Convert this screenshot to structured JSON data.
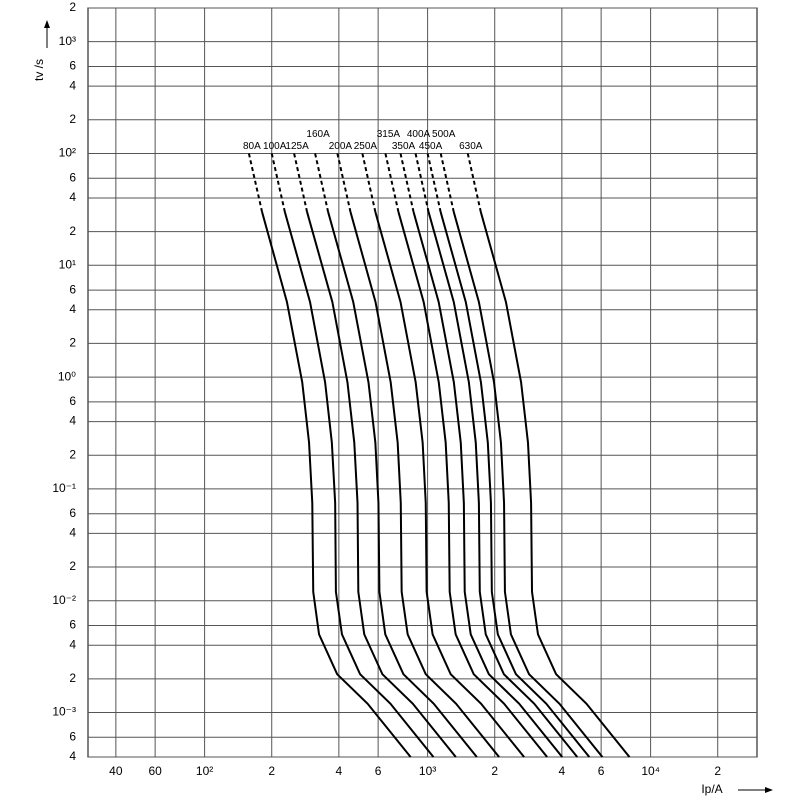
{
  "chart_data": {
    "type": "line",
    "x_label": "Ip/A",
    "y_label": "tv /s",
    "log_x": true,
    "log_y": true,
    "grid": true,
    "dashed_first_segment": true,
    "xlim": [
      30,
      30000
    ],
    "xticks": [
      40,
      60,
      {
        "value": 100,
        "label": "10²"
      },
      {
        "value": 200,
        "label": "2"
      },
      {
        "value": 400,
        "label": "4"
      },
      {
        "value": 600,
        "label": "6"
      },
      {
        "value": 1000,
        "label": "10³"
      },
      {
        "value": 2000,
        "label": "2"
      },
      {
        "value": 4000,
        "label": "4"
      },
      {
        "value": 6000,
        "label": "6"
      },
      {
        "value": 10000,
        "label": "10⁴"
      },
      {
        "value": 20000,
        "label": "2"
      }
    ],
    "ylim": [
      0.0004,
      2000
    ],
    "yticks": [
      {
        "value": 2000,
        "label": "2"
      },
      {
        "value": 1000,
        "label": "10³"
      },
      {
        "value": 600,
        "label": "6"
      },
      {
        "value": 400,
        "label": "4"
      },
      {
        "value": 200,
        "label": "2"
      },
      {
        "value": 100,
        "label": "10²"
      },
      {
        "value": 60,
        "label": "6"
      },
      {
        "value": 40,
        "label": "4"
      },
      {
        "value": 20,
        "label": "2"
      },
      {
        "value": 10,
        "label": "10¹"
      },
      6,
      4,
      2,
      {
        "value": 1,
        "label": "10⁰"
      },
      {
        "value": 0.6,
        "label": "6"
      },
      {
        "value": 0.4,
        "label": "4"
      },
      {
        "value": 0.2,
        "label": "2"
      },
      {
        "value": 0.1,
        "label": "10⁻¹"
      },
      {
        "value": 0.06,
        "label": "6"
      },
      {
        "value": 0.04,
        "label": "4"
      },
      {
        "value": 0.02,
        "label": "2"
      },
      {
        "value": 0.01,
        "label": "10⁻²"
      },
      {
        "value": 0.006,
        "label": "6"
      },
      {
        "value": 0.004,
        "label": "4"
      },
      {
        "value": 0.002,
        "label": "2"
      },
      {
        "value": 0.001,
        "label": "10⁻³"
      },
      {
        "value": 0.0006,
        "label": "6"
      },
      {
        "value": 0.0004,
        "label": "4"
      }
    ],
    "series": [
      {
        "name": "80A",
        "color": "#000000",
        "x": [
          158,
          181,
          234,
          274,
          294,
          304,
          307,
          326,
          393,
          538,
          839
        ],
        "values": [
          100,
          30,
          4.7,
          0.9,
          0.26,
          0.075,
          0.012,
          0.005,
          0.0022,
          0.0012,
          0.0004
        ]
      },
      {
        "name": "100A",
        "color": "#000000",
        "x": [
          200,
          229,
          297,
          347,
          372,
          385,
          388,
          413,
          498,
          681,
          1062
        ],
        "values": [
          100,
          30,
          4.7,
          0.9,
          0.26,
          0.075,
          0.012,
          0.005,
          0.0022,
          0.0012,
          0.0004
        ]
      },
      {
        "name": "125A",
        "color": "#000000",
        "x": [
          252,
          288,
          374,
          437,
          469,
          485,
          489,
          520,
          627,
          858,
          1338
        ],
        "values": [
          100,
          30,
          4.7,
          0.9,
          0.26,
          0.075,
          0.012,
          0.005,
          0.0022,
          0.0012,
          0.0004
        ]
      },
      {
        "name": "160A",
        "color": "#000000",
        "x": [
          313,
          358,
          464,
          543,
          583,
          602,
          608,
          646,
          779,
          1065,
          1662
        ],
        "values": [
          100,
          30,
          4.7,
          0.9,
          0.26,
          0.075,
          0.012,
          0.005,
          0.0022,
          0.0012,
          0.0004
        ]
      },
      {
        "name": "200A",
        "color": "#000000",
        "x": [
          394,
          451,
          584,
          683,
          734,
          758,
          765,
          814,
          981,
          1341,
          2092
        ],
        "values": [
          100,
          30,
          4.7,
          0.9,
          0.26,
          0.075,
          0.012,
          0.005,
          0.0022,
          0.0012,
          0.0004
        ]
      },
      {
        "name": "250A",
        "color": "#000000",
        "x": [
          510,
          583,
          756,
          884,
          950,
          981,
          990,
          1053,
          1269,
          1736,
          2708
        ],
        "values": [
          100,
          30,
          4.7,
          0.9,
          0.26,
          0.075,
          0.012,
          0.005,
          0.0022,
          0.0012,
          0.0004
        ]
      },
      {
        "name": "315A",
        "color": "#000000",
        "x": [
          647,
          740,
          960,
          1122,
          1205,
          1244,
          1256,
          1336,
          1610,
          2202,
          3435
        ],
        "values": [
          100,
          30,
          4.7,
          0.9,
          0.26,
          0.075,
          0.012,
          0.005,
          0.0022,
          0.0012,
          0.0004
        ]
      },
      {
        "name": "350A",
        "color": "#000000",
        "x": [
          756,
          865,
          1121,
          1311,
          1408,
          1454,
          1467,
          1561,
          1882,
          2573,
          4014
        ],
        "values": [
          100,
          30,
          4.7,
          0.9,
          0.26,
          0.075,
          0.012,
          0.005,
          0.0022,
          0.0012,
          0.0004
        ]
      },
      {
        "name": "400A",
        "color": "#000000",
        "x": [
          883,
          1010,
          1310,
          1531,
          1644,
          1698,
          1714,
          1823,
          2198,
          3006,
          4688
        ],
        "values": [
          100,
          30,
          4.7,
          0.9,
          0.26,
          0.075,
          0.012,
          0.005,
          0.0022,
          0.0012,
          0.0004
        ]
      },
      {
        "name": "450A",
        "color": "#000000",
        "x": [
          1000,
          1144,
          1483,
          1734,
          1862,
          1923,
          1941,
          2065,
          2489,
          3404,
          5309
        ],
        "values": [
          100,
          30,
          4.7,
          0.9,
          0.26,
          0.075,
          0.012,
          0.005,
          0.0022,
          0.0012,
          0.0004
        ]
      },
      {
        "name": "500A",
        "color": "#000000",
        "x": [
          1145,
          1310,
          1698,
          1985,
          2132,
          2202,
          2222,
          2364,
          2850,
          3898,
          6079
        ],
        "values": [
          100,
          30,
          4.7,
          0.9,
          0.26,
          0.075,
          0.012,
          0.005,
          0.0022,
          0.0012,
          0.0004
        ]
      },
      {
        "name": "630A",
        "color": "#000000",
        "x": [
          1514,
          1732,
          2245,
          2625,
          2819,
          2911,
          2939,
          3126,
          3768,
          5154,
          8038
        ],
        "values": [
          100,
          30,
          4.7,
          0.9,
          0.26,
          0.075,
          0.012,
          0.005,
          0.0022,
          0.0012,
          0.0004
        ]
      }
    ]
  }
}
